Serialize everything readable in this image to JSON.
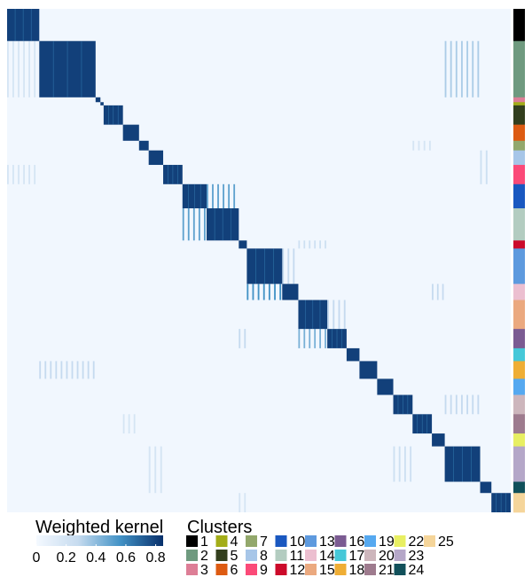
{
  "chart_data": {
    "type": "heatmap",
    "title": "",
    "xlabel": "",
    "ylabel": "",
    "grid": false,
    "n_clusters": 25,
    "cluster_order": [
      1,
      2,
      3,
      4,
      5,
      6,
      7,
      8,
      9,
      10,
      11,
      12,
      13,
      14,
      15,
      16,
      17,
      18,
      19,
      20,
      21,
      22,
      23,
      24,
      25
    ],
    "cluster_sizes": [
      20,
      35,
      3,
      2,
      12,
      10,
      6,
      9,
      12,
      15,
      20,
      5,
      22,
      10,
      18,
      12,
      8,
      11,
      10,
      12,
      12,
      8,
      22,
      7,
      12
    ],
    "cluster_colors": {
      "1": "#000000",
      "2": "#6f9a7f",
      "3": "#dd7e96",
      "4": "#a3ad18",
      "5": "#333f1d",
      "6": "#dd5b12",
      "7": "#93a86c",
      "8": "#a7c6e8",
      "9": "#fb4a78",
      "10": "#1a58c0",
      "11": "#b3ccc0",
      "12": "#cc0a2a",
      "13": "#5e9ade",
      "14": "#ecbfd0",
      "15": "#eba97f",
      "16": "#7b5b92",
      "17": "#46c8d8",
      "18": "#efae35",
      "19": "#56a9f0",
      "20": "#cdb6bc",
      "21": "#9e7b8e",
      "22": "#e8ef62",
      "23": "#b5a7c8",
      "24": "#11505a",
      "25": "#f5d59a"
    },
    "within_cluster_value": 0.8,
    "background_value": 0.02,
    "off_block_links": [
      {
        "rows": 2,
        "cols": 23,
        "value": 0.35
      },
      {
        "rows": 2,
        "cols": 1,
        "value": 0.2
      },
      {
        "rows": 8,
        "cols": 24,
        "value": 0.25
      },
      {
        "rows": 10,
        "cols": 11,
        "value": 0.5
      },
      {
        "rows": 11,
        "cols": 10,
        "value": 0.5
      },
      {
        "rows": 12,
        "cols": 15,
        "value": 0.25
      },
      {
        "rows": 13,
        "cols": 14,
        "value": 0.3
      },
      {
        "rows": 14,
        "cols": 13,
        "value": 0.55
      },
      {
        "rows": 14,
        "cols": 22,
        "value": 0.3
      },
      {
        "rows": 16,
        "cols": 12,
        "value": 0.3
      },
      {
        "rows": 16,
        "cols": 15,
        "value": 0.45
      },
      {
        "rows": 15,
        "cols": 16,
        "value": 0.3
      },
      {
        "rows": 18,
        "cols": 2,
        "value": 0.3
      },
      {
        "rows": 20,
        "cols": 23,
        "value": 0.3
      },
      {
        "rows": 21,
        "cols": 6,
        "value": 0.2
      },
      {
        "rows": 23,
        "cols": 20,
        "value": 0.25
      },
      {
        "rows": 23,
        "cols": 8,
        "value": 0.2
      },
      {
        "rows": 24,
        "cols": 8,
        "value": 0.2
      },
      {
        "rows": 7,
        "cols": 21,
        "value": 0.2
      },
      {
        "rows": 9,
        "cols": 24,
        "value": 0.25
      },
      {
        "rows": 9,
        "cols": 1,
        "value": 0.2
      },
      {
        "rows": 25,
        "cols": 12,
        "value": 0.2
      }
    ],
    "colorbar": {
      "title": "Weighted kernel",
      "ticks": [
        0,
        0.2,
        0.4,
        0.6,
        0.8
      ],
      "tick_labels": [
        "0",
        "0.2",
        "0.4",
        "0.6",
        "0.8"
      ],
      "range": [
        0,
        0.85
      ],
      "color_low": "#f4f9ff",
      "color_high": "#08306b"
    },
    "cluster_legend": {
      "title": "Clusters",
      "labels": [
        "1",
        "2",
        "3",
        "4",
        "5",
        "6",
        "7",
        "8",
        "9",
        "10",
        "11",
        "12",
        "13",
        "14",
        "15",
        "16",
        "17",
        "18",
        "19",
        "20",
        "21",
        "22",
        "23",
        "24",
        "25"
      ]
    }
  }
}
